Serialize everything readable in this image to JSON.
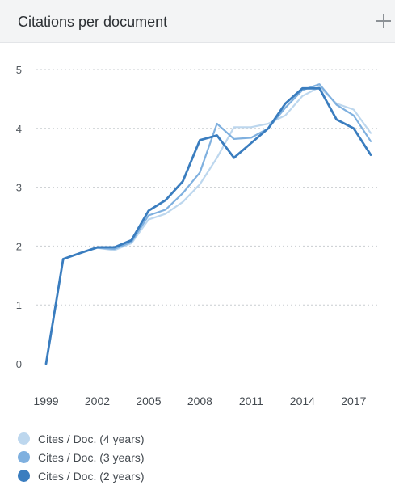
{
  "panel": {
    "title": "Citations per document"
  },
  "chart_data": {
    "type": "line",
    "title": "Citations per document",
    "xlabel": "",
    "ylabel": "",
    "x": [
      1999,
      2000,
      2001,
      2002,
      2003,
      2004,
      2005,
      2006,
      2007,
      2008,
      2009,
      2010,
      2011,
      2012,
      2013,
      2014,
      2015,
      2016,
      2017,
      2018
    ],
    "x_ticks": [
      1999,
      2002,
      2005,
      2008,
      2011,
      2014,
      2017
    ],
    "y_ticks": [
      0,
      1,
      2,
      3,
      4,
      5
    ],
    "xlim": [
      1999,
      2018
    ],
    "ylim": [
      0,
      5
    ],
    "grid": "horizontal dotted",
    "legend_position": "bottom-left",
    "series": [
      {
        "name": "Cites / Doc. (4 years)",
        "color": "#bdd7ee",
        "values": [
          0,
          1.78,
          1.88,
          1.97,
          1.93,
          2.05,
          2.45,
          2.55,
          2.75,
          3.05,
          3.5,
          4.02,
          4.02,
          4.08,
          4.22,
          4.55,
          4.7,
          4.42,
          4.32,
          3.92
        ]
      },
      {
        "name": "Cites / Doc. (3 years)",
        "color": "#7fb0df",
        "values": [
          0,
          1.78,
          1.88,
          1.97,
          1.95,
          2.07,
          2.52,
          2.62,
          2.9,
          3.25,
          4.08,
          3.82,
          3.84,
          4.0,
          4.35,
          4.65,
          4.75,
          4.4,
          4.22,
          3.78
        ]
      },
      {
        "name": "Cites / Doc. (2 years)",
        "color": "#3a7dbf",
        "values": [
          0,
          1.78,
          1.88,
          1.98,
          1.98,
          2.1,
          2.6,
          2.78,
          3.1,
          3.8,
          3.88,
          3.5,
          3.75,
          4.0,
          4.42,
          4.68,
          4.68,
          4.15,
          4.0,
          3.55
        ]
      }
    ]
  }
}
